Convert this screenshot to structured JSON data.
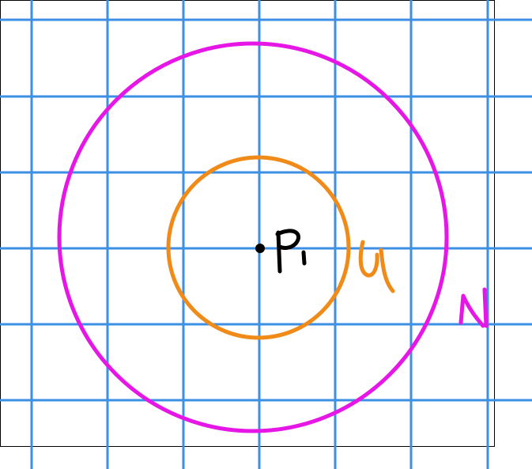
{
  "labels": {
    "point": "P1",
    "inner_set": "U",
    "outer_set": "N"
  },
  "colors": {
    "grid": "#3d8fe6",
    "inner_circle": "#f08a18",
    "outer_circle": "#e617e6",
    "point": "#000000",
    "frame": "#000000",
    "background": "#ffffff"
  },
  "grid": {
    "show": true
  }
}
